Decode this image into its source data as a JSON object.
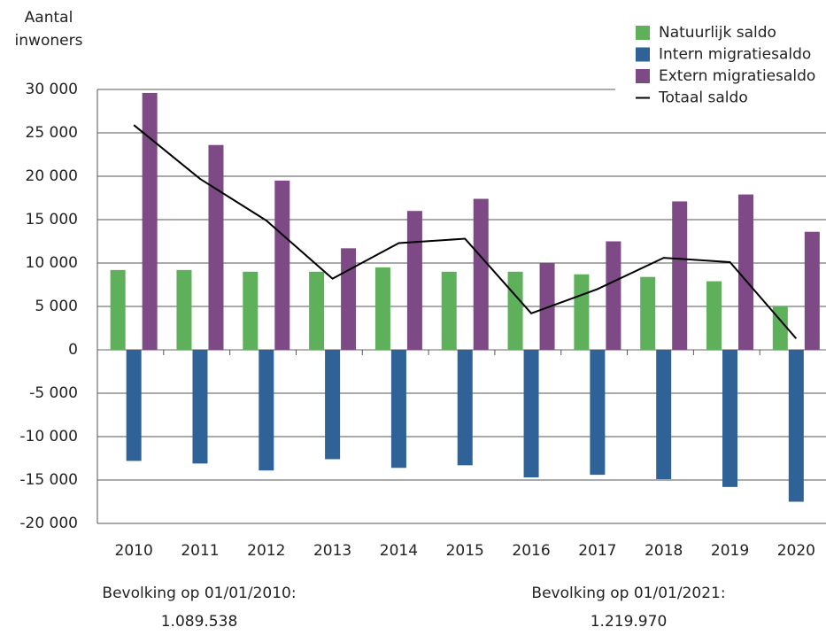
{
  "chart_data": {
    "type": "bar",
    "y_label": [
      "Aantal",
      "inwoners"
    ],
    "categories": [
      "2010",
      "2011",
      "2012",
      "2013",
      "2014",
      "2015",
      "2016",
      "2017",
      "2018",
      "2019",
      "2020"
    ],
    "series": [
      {
        "name": "Natuurlijk saldo",
        "color": "#5fb05a",
        "values": [
          9200,
          9200,
          9000,
          9000,
          9500,
          9000,
          9000,
          8700,
          8400,
          7900,
          5000
        ]
      },
      {
        "name": "Intern migratiesaldo",
        "color": "#2f6296",
        "values": [
          -12800,
          -13100,
          -13900,
          -12600,
          -13600,
          -13300,
          -14700,
          -14400,
          -14900,
          -15800,
          -17500
        ]
      },
      {
        "name": "Extern migratiesaldo",
        "color": "#7e4a86",
        "values": [
          29600,
          23600,
          19500,
          11700,
          16000,
          17400,
          10000,
          12500,
          17100,
          17900,
          13600
        ]
      },
      {
        "name": "Totaal saldo",
        "color": "#000000",
        "type": "line",
        "values": [
          25900,
          19700,
          14900,
          8200,
          12300,
          12800,
          4200,
          7000,
          10600,
          10100,
          1300
        ]
      }
    ],
    "ylim": [
      -20000,
      30000
    ],
    "yticks": [
      {
        "value": 30000,
        "label": "30 000"
      },
      {
        "value": 25000,
        "label": "25 000"
      },
      {
        "value": 20000,
        "label": "20 000"
      },
      {
        "value": 15000,
        "label": "15 000"
      },
      {
        "value": 10000,
        "label": "10 000"
      },
      {
        "value": 5000,
        "label": "5 000"
      },
      0,
      {
        "value": -5000,
        "label": "-5 000"
      },
      {
        "value": -10000,
        "label": "-10 000"
      },
      {
        "value": -15000,
        "label": "-15 000"
      },
      {
        "value": -20000,
        "label": "-20 000"
      }
    ],
    "grid": true,
    "legend": "top-right",
    "annotations": [
      {
        "text": "Bevolking op 01/01/2010:",
        "value": "1.089.538"
      },
      {
        "text": "Bevolking op 01/01/2021:",
        "value": "1.219.970"
      }
    ]
  }
}
